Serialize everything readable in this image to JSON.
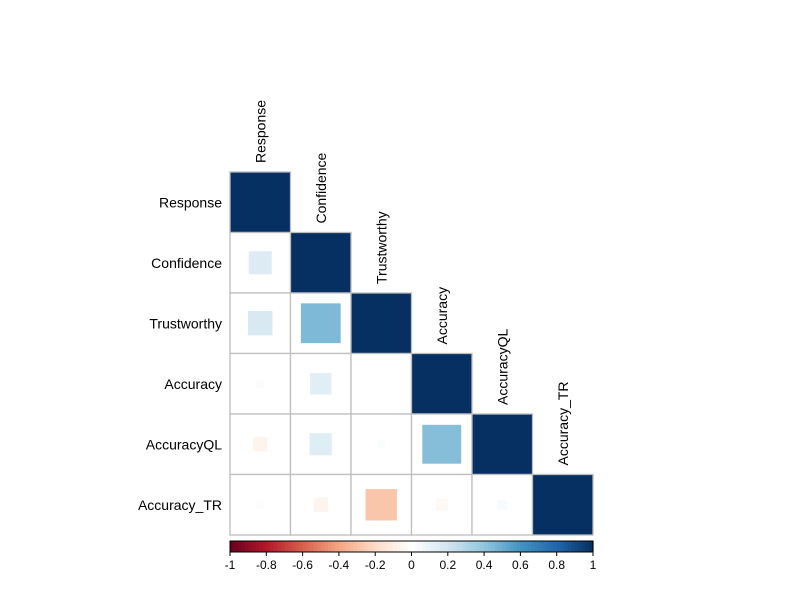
{
  "chart_data": {
    "type": "heatmap",
    "subtype": "correlation-matrix-lower",
    "method": "square",
    "variables": [
      "Response",
      "Confidence",
      "Trustworthy",
      "Accuracy",
      "AccuracyQL",
      "Accuracy_TR"
    ],
    "matrix": [
      [
        1.0,
        0.15,
        0.17,
        0.02,
        -0.06,
        0.02
      ],
      [
        0.15,
        1.0,
        0.45,
        0.13,
        0.14,
        -0.06
      ],
      [
        0.17,
        0.45,
        1.0,
        0.0,
        0.02,
        -0.28
      ],
      [
        0.02,
        0.13,
        0.0,
        1.0,
        0.43,
        -0.04
      ],
      [
        -0.06,
        0.14,
        0.02,
        0.43,
        1.0,
        0.03
      ],
      [
        0.02,
        -0.06,
        -0.28,
        -0.04,
        0.03,
        1.0
      ]
    ],
    "colorbar": {
      "min": -1,
      "max": 1,
      "tick_labels": [
        "-1",
        "-0.8",
        "-0.6",
        "-0.4",
        "-0.2",
        "0",
        "0.2",
        "0.4",
        "0.6",
        "0.8",
        "1"
      ],
      "tick_values": [
        -1,
        -0.8,
        -0.6,
        -0.4,
        -0.2,
        0,
        0.2,
        0.4,
        0.6,
        0.8,
        1
      ],
      "palette": [
        "#67001F",
        "#B2182B",
        "#D6604D",
        "#F4A582",
        "#FDDBC7",
        "#FFFFFF",
        "#D1E5F0",
        "#92C5DE",
        "#4393C3",
        "#2166AC",
        "#053061"
      ]
    },
    "grid_color": "#bebebe",
    "title": ""
  }
}
